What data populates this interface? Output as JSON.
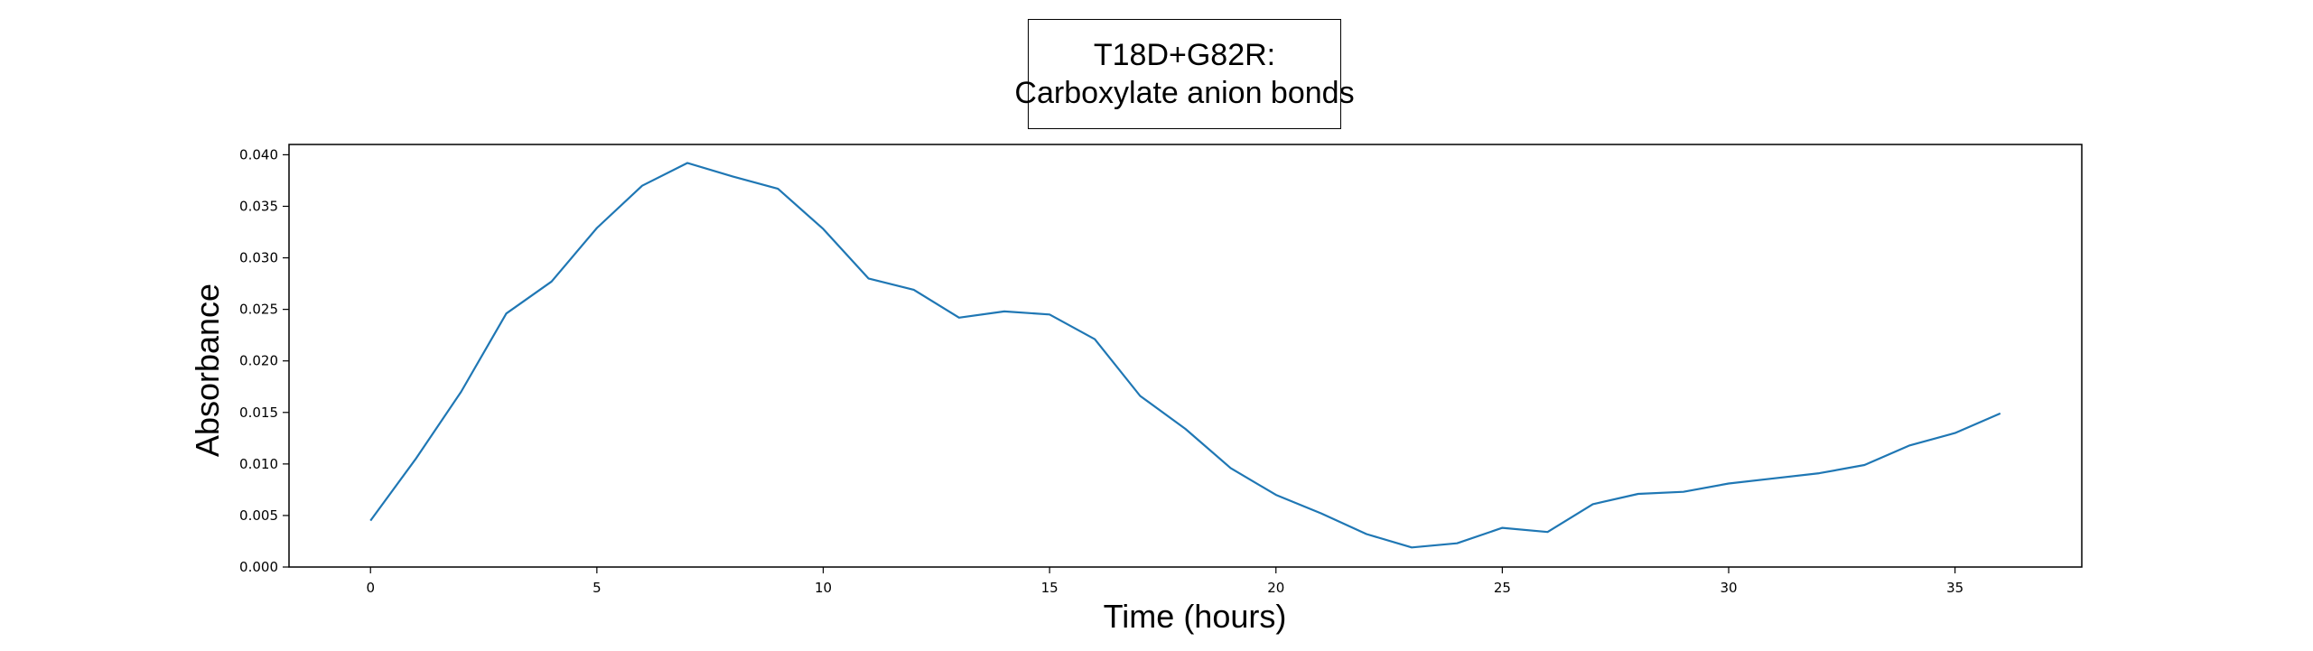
{
  "chart_data": {
    "type": "line",
    "title_lines": [
      "T18D+G82R:",
      "Carboxylate anion bonds"
    ],
    "xlabel": "Time (hours)",
    "ylabel": "Absorbance",
    "xlim": [
      -1.8,
      37.8
    ],
    "ylim": [
      0.0,
      0.041
    ],
    "xticks": [
      0,
      5,
      10,
      15,
      20,
      25,
      30,
      35
    ],
    "xtick_labels": [
      "0",
      "5",
      "10",
      "15",
      "20",
      "25",
      "30",
      "35"
    ],
    "yticks": [
      0.0,
      0.005,
      0.01,
      0.015,
      0.02,
      0.025,
      0.03,
      0.035,
      0.04
    ],
    "ytick_labels": [
      "0.000",
      "0.005",
      "0.010",
      "0.015",
      "0.020",
      "0.025",
      "0.030",
      "0.035",
      "0.040"
    ],
    "grid": false,
    "line_color": "#1f77b4",
    "series": [
      {
        "x": [
          0,
          1,
          2,
          3,
          4,
          5,
          6,
          7,
          8,
          9,
          10,
          11,
          12,
          13,
          14,
          15,
          16,
          17,
          18,
          19,
          20,
          21,
          22,
          23,
          24,
          25,
          26,
          27,
          28,
          29,
          30,
          31,
          32,
          33,
          34,
          35,
          36
        ],
        "values": [
          0.0045,
          0.0105,
          0.017,
          0.0246,
          0.0277,
          0.0329,
          0.037,
          0.0392,
          0.0379,
          0.0367,
          0.0328,
          0.028,
          0.0269,
          0.0242,
          0.0248,
          0.0245,
          0.0221,
          0.0166,
          0.0134,
          0.0096,
          0.007,
          0.0052,
          0.0032,
          0.0019,
          0.0023,
          0.0038,
          0.0034,
          0.0061,
          0.0071,
          0.0073,
          0.0081,
          0.0086,
          0.0091,
          0.0099,
          0.0118,
          0.013,
          0.0149
        ]
      }
    ]
  }
}
